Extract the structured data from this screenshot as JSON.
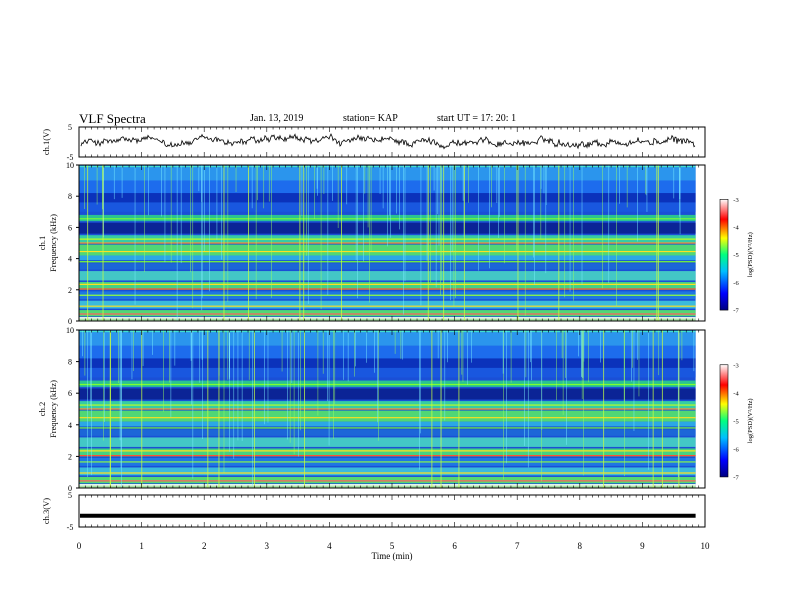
{
  "header": {
    "title": "VLF Spectra",
    "date": "Jan. 13, 2019",
    "station": "station= KAP",
    "start": "start  UT =   17: 20: 1"
  },
  "colors": {
    "spectrogram_base": "#1a4fd6",
    "line_color": "#000000",
    "colorbar": [
      "#000080",
      "#0000ff",
      "#00bfff",
      "#00ff80",
      "#ffff00",
      "#ff0000",
      "#ffffff"
    ]
  },
  "chart_data": [
    {
      "type": "line",
      "name": "ch1-waveform",
      "ylabel": "ch.1(V)",
      "ylim": [
        -5,
        5
      ],
      "yticks": [
        "5",
        "-5"
      ],
      "xlim": [
        0,
        10
      ],
      "note_values": "noisy waveform around 0 V, amplitude ~2.5 V"
    },
    {
      "type": "heatmap",
      "name": "ch1-spectrogram",
      "ylabel": "ch.1\nFrequency (kHz)",
      "ylim": [
        0,
        10
      ],
      "yticks": [
        "0",
        "2",
        "4",
        "6",
        "8",
        "10"
      ],
      "xlim": [
        0,
        9.85
      ],
      "colorbar": {
        "label": "log(PSD)(V²/Hz)",
        "range": [
          -7,
          -3
        ],
        "ticks": [
          "-3",
          "-4",
          "-5",
          "-6",
          "-7"
        ]
      }
    },
    {
      "type": "heatmap",
      "name": "ch2-spectrogram",
      "ylabel": "ch.2\nFrequency (kHz)",
      "ylim": [
        0,
        10
      ],
      "yticks": [
        "0",
        "2",
        "4",
        "6",
        "8",
        "10"
      ],
      "xlim": [
        0,
        9.85
      ],
      "colorbar": {
        "label": "log(PSD)(V²/Hz)",
        "range": [
          -7,
          -3
        ],
        "ticks": [
          "-3",
          "-4",
          "-5",
          "-6",
          "-7"
        ]
      }
    },
    {
      "type": "line",
      "name": "ch3-waveform",
      "ylabel": "ch.3(V)",
      "ylim": [
        -5,
        5
      ],
      "yticks": [
        "5",
        "-5"
      ],
      "xlim": [
        0,
        10
      ],
      "level": -1.5
    }
  ],
  "xaxis": {
    "label": "Time  (min)",
    "ticks": [
      "0",
      "1",
      "2",
      "3",
      "4",
      "5",
      "6",
      "7",
      "8",
      "9",
      "10"
    ]
  }
}
